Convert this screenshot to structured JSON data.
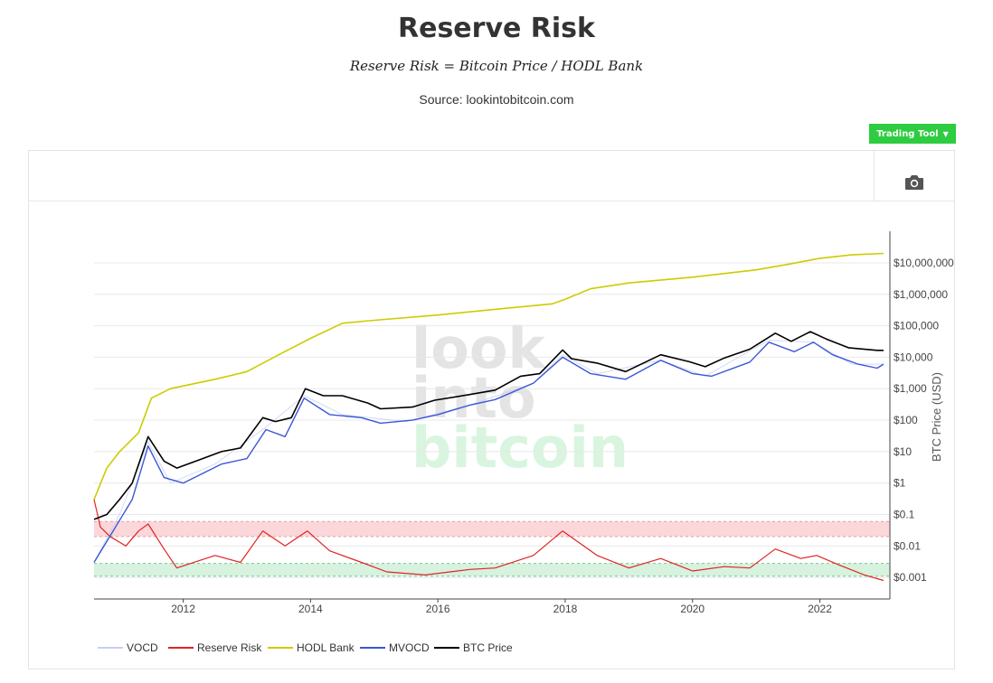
{
  "header": {
    "title": "Reserve Risk",
    "formula": "Reserve Risk = Bitcoin Price / HODL Bank",
    "source": "Source: lookintobitcoin.com"
  },
  "toolbar": {
    "trading_tool_label": "Trading Tool",
    "camera_icon": "camera-icon"
  },
  "watermark": [
    "look",
    "into",
    "bitcoin"
  ],
  "colors": {
    "vocd": "#c9cef5",
    "reserve_risk": "#e02424",
    "hodl_bank": "#cccc00",
    "mvocd": "#3a57d6",
    "btc_price": "#000000",
    "red_band": "#fbd7da",
    "green_band": "#d7f2de",
    "button": "#2ecc40"
  },
  "chart_data": {
    "type": "line",
    "y_scale": "log",
    "ylabel": "BTC Price (USD)",
    "y_ticks": [
      "$0.001",
      "$0.01",
      "$0.1",
      "$1",
      "$10",
      "$100",
      "$1,000",
      "$10,000",
      "$100,000",
      "$1,000,000",
      "$10,000,000"
    ],
    "x_ticks": [
      "2012",
      "2014",
      "2016",
      "2018",
      "2020",
      "2022"
    ],
    "xlim": [
      2010.6,
      2023.1
    ],
    "ylim": [
      0.0004,
      40000000
    ],
    "bands": [
      {
        "name": "red",
        "y_range": [
          0.02,
          0.06
        ]
      },
      {
        "name": "green",
        "y_range": [
          0.0011,
          0.0028
        ]
      }
    ],
    "legend": [
      "VOCD",
      "Reserve Risk",
      "HODL Bank",
      "MVOCD",
      "BTC Price"
    ],
    "legend_position": "bottom-left",
    "series": [
      {
        "name": "BTC Price",
        "x": [
          2010.6,
          2010.8,
          2011.0,
          2011.2,
          2011.45,
          2011.7,
          2011.9,
          2012.2,
          2012.6,
          2012.9,
          2013.25,
          2013.45,
          2013.7,
          2013.92,
          2014.2,
          2014.5,
          2014.9,
          2015.1,
          2015.6,
          2015.95,
          2016.5,
          2016.9,
          2017.3,
          2017.6,
          2017.96,
          2018.1,
          2018.5,
          2018.95,
          2019.5,
          2019.95,
          2020.2,
          2020.5,
          2020.9,
          2021.3,
          2021.55,
          2021.85,
          2022.1,
          2022.45,
          2022.9,
          2023.0
        ],
        "values": [
          0.07,
          0.1,
          0.3,
          1,
          30,
          5,
          3,
          5,
          10,
          13,
          120,
          90,
          120,
          1000,
          600,
          600,
          350,
          230,
          260,
          430,
          650,
          900,
          2500,
          3000,
          17000,
          9000,
          6500,
          3500,
          12000,
          7200,
          5000,
          9500,
          18000,
          58000,
          32000,
          65000,
          38000,
          20000,
          16500,
          16500
        ]
      },
      {
        "name": "MVOCD",
        "x": [
          2010.6,
          2010.9,
          2011.2,
          2011.45,
          2011.7,
          2012.0,
          2012.6,
          2013.0,
          2013.3,
          2013.6,
          2013.9,
          2014.3,
          2014.8,
          2015.1,
          2015.6,
          2016.0,
          2016.5,
          2016.9,
          2017.5,
          2017.96,
          2018.4,
          2018.95,
          2019.5,
          2020.0,
          2020.3,
          2020.9,
          2021.2,
          2021.6,
          2021.9,
          2022.2,
          2022.6,
          2022.9,
          2023.0
        ],
        "values": [
          0.003,
          0.03,
          0.3,
          15,
          1.5,
          1,
          4,
          6,
          50,
          30,
          500,
          150,
          120,
          80,
          100,
          150,
          300,
          450,
          1500,
          10000,
          3000,
          2000,
          8000,
          3000,
          2500,
          7000,
          30000,
          15000,
          30000,
          12000,
          6000,
          4500,
          6000
        ]
      },
      {
        "name": "HODL Bank",
        "x": [
          2010.6,
          2010.8,
          2011.0,
          2011.3,
          2011.5,
          2011.8,
          2012.5,
          2013.0,
          2013.5,
          2014.0,
          2014.5,
          2015.0,
          2016.0,
          2017.0,
          2017.8,
          2018.0,
          2018.4,
          2019.0,
          2020.0,
          2021.0,
          2021.5,
          2022.0,
          2022.5,
          2023.0
        ],
        "values": [
          0.3,
          3,
          10,
          40,
          500,
          1000,
          2000,
          3500,
          12000,
          40000,
          120000,
          150000,
          220000,
          350000,
          500000,
          700000,
          1500000,
          2300000,
          3500000,
          6000000,
          9000000,
          14000000,
          18000000,
          20000000
        ]
      },
      {
        "name": "Reserve Risk",
        "x": [
          2010.6,
          2010.7,
          2010.85,
          2011.1,
          2011.3,
          2011.45,
          2011.7,
          2011.9,
          2012.5,
          2012.9,
          2013.25,
          2013.6,
          2013.95,
          2014.3,
          2014.8,
          2015.2,
          2015.8,
          2016.5,
          2016.9,
          2017.5,
          2017.96,
          2018.5,
          2019.0,
          2019.5,
          2020.0,
          2020.5,
          2020.9,
          2021.3,
          2021.7,
          2021.95,
          2022.3,
          2022.7,
          2023.0
        ],
        "values": [
          0.3,
          0.04,
          0.02,
          0.01,
          0.03,
          0.05,
          0.008,
          0.002,
          0.005,
          0.003,
          0.03,
          0.01,
          0.03,
          0.007,
          0.003,
          0.0015,
          0.0012,
          0.0018,
          0.002,
          0.005,
          0.03,
          0.005,
          0.002,
          0.004,
          0.0016,
          0.0022,
          0.002,
          0.008,
          0.004,
          0.005,
          0.0025,
          0.0012,
          0.0008
        ]
      },
      {
        "name": "VOCD",
        "x": [
          2010.6,
          2011.0,
          2011.45,
          2011.8,
          2012.5,
          2013.3,
          2013.9,
          2014.5,
          2015.5,
          2016.5,
          2017.5,
          2017.96,
          2018.5,
          2019.5,
          2020.2,
          2021.2,
          2021.9,
          2022.5,
          2023.0
        ],
        "values": [
          0.003,
          0.1,
          20,
          1,
          4,
          60,
          600,
          150,
          90,
          300,
          1500,
          12000,
          3000,
          8000,
          2500,
          35000,
          30000,
          6000,
          6000
        ]
      }
    ]
  }
}
